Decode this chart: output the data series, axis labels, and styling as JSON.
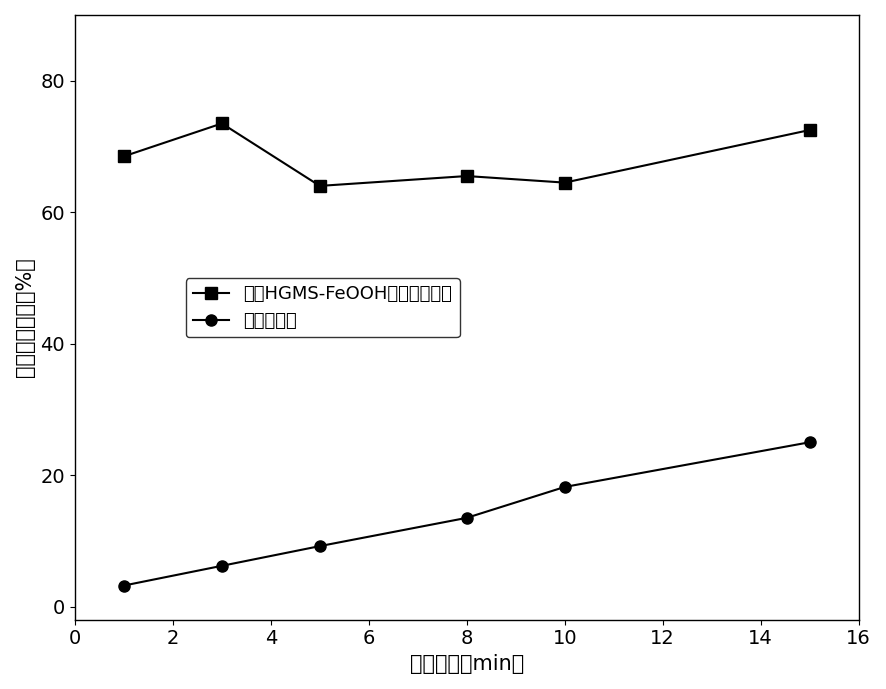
{
  "series1_x": [
    1,
    3,
    5,
    8,
    10,
    15
  ],
  "series1_y": [
    68.5,
    73.5,
    64.0,
    65.5,
    64.5,
    72.5
  ],
  "series1_label": "超导HGMS-FeOOH吸附耦合工艺",
  "series1_marker": "s",
  "series1_color": "#000000",
  "series2_x": [
    1,
    3,
    5,
    8,
    10,
    15
  ],
  "series2_y": [
    3.2,
    6.2,
    9.2,
    13.5,
    18.2,
    25.0
  ],
  "series2_label": "无磁场静置",
  "series2_marker": "o",
  "series2_color": "#000000",
  "xlabel": "静置时间（min）",
  "ylabel": "硃离子去除率（%）",
  "xlim": [
    0,
    16
  ],
  "ylim": [
    -2,
    90
  ],
  "xticks": [
    0,
    2,
    4,
    6,
    8,
    10,
    12,
    14,
    16
  ],
  "yticks": [
    0,
    20,
    40,
    60,
    80
  ],
  "background_color": "#ffffff",
  "font_size": 15,
  "tick_font_size": 14,
  "marker_size": 8,
  "line_width": 1.5
}
